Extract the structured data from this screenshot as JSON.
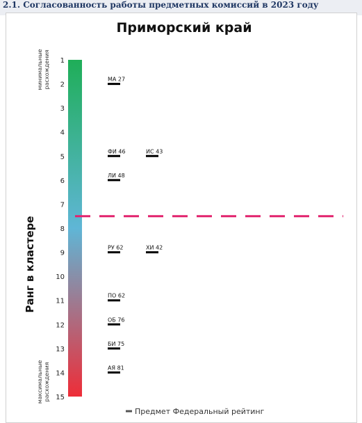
{
  "heading": "2.1. Согласованность работы предметных комиссий в 2023 году",
  "chart_data": {
    "type": "scatter",
    "title": "Приморский край",
    "ylabel": "Ранг в кластере",
    "ylim": [
      1,
      15
    ],
    "y_ticks": [
      "1",
      "2",
      "3",
      "4",
      "5",
      "6",
      "7",
      "8",
      "9",
      "10",
      "11",
      "12",
      "13",
      "14",
      "15"
    ],
    "y_inverted": true,
    "top_annotation": "минимальные расхождения",
    "bottom_annotation": "максимальные расхождения",
    "threshold_rank": 7.5,
    "threshold_color": "#e2236e",
    "gradient_colors": [
      "#1fae58",
      "#5fb6d6",
      "#ee2d38"
    ],
    "legend": "Предмет Федеральный рейтинг",
    "points": [
      {
        "label": "МА 27",
        "rank": 2,
        "col": 1
      },
      {
        "label": "ФИ 46",
        "rank": 5,
        "col": 1
      },
      {
        "label": "ИС 43",
        "rank": 5,
        "col": 2
      },
      {
        "label": "ЛИ 48",
        "rank": 6,
        "col": 1
      },
      {
        "label": "РУ 62",
        "rank": 9,
        "col": 1
      },
      {
        "label": "ХИ 42",
        "rank": 9,
        "col": 2
      },
      {
        "label": "ПО 62",
        "rank": 11,
        "col": 1
      },
      {
        "label": "ОБ 76",
        "rank": 12,
        "col": 1
      },
      {
        "label": "БИ 75",
        "rank": 13,
        "col": 1
      },
      {
        "label": "АЯ 81",
        "rank": 14,
        "col": 1
      }
    ]
  }
}
